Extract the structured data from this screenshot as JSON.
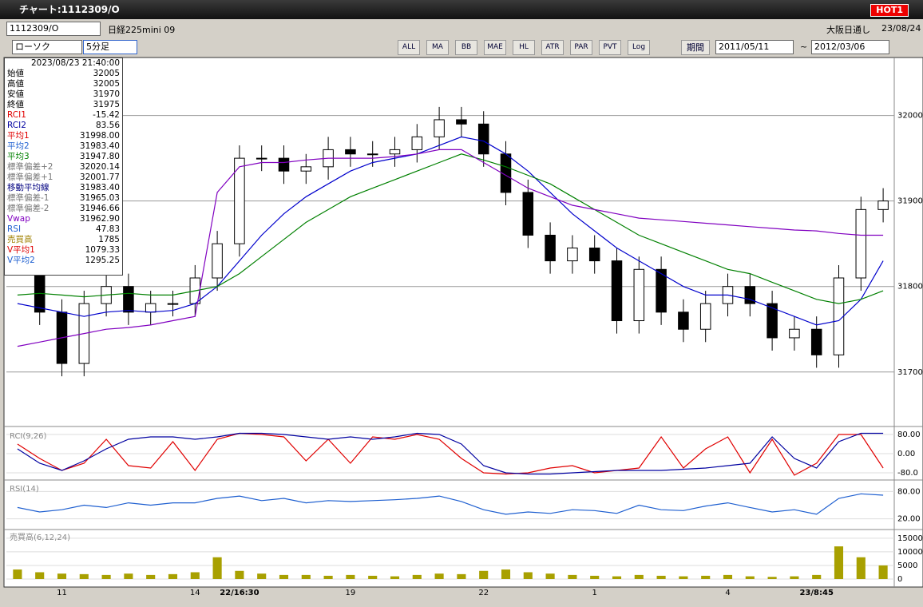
{
  "window": {
    "title": "チャート:1112309/O",
    "badge": "HOT1"
  },
  "toolbar": {
    "code": "1112309/O",
    "name": "日経225mini 09",
    "session": "大阪日通し",
    "date": "23/08/24",
    "chart_kind": "ローソク",
    "interval": "5分足",
    "buttons": [
      "ALL",
      "MA",
      "BB",
      "MAE",
      "HL",
      "ATR",
      "PAR",
      "PVT",
      "Log"
    ],
    "period_label": "期間",
    "from": "2011/05/11",
    "tilde": "~",
    "to": "2012/03/06"
  },
  "info_panel": {
    "datetime": "2023/08/23 21:40:00",
    "rows": [
      [
        "始値",
        "32005"
      ],
      [
        "高値",
        "32005"
      ],
      [
        "安値",
        "31970"
      ],
      [
        "終値",
        "31975"
      ],
      [
        "RCI1",
        "-15.42"
      ],
      [
        "RCI2",
        "83.56"
      ],
      [
        "平均1",
        "31998.00"
      ],
      [
        "平均2",
        "31983.40"
      ],
      [
        "平均3",
        "31947.80"
      ],
      [
        "標準偏差+2",
        "32020.14"
      ],
      [
        "標準偏差+1",
        "32001.77"
      ],
      [
        "移動平均線",
        "31983.40"
      ],
      [
        "標準偏差-1",
        "31965.03"
      ],
      [
        "標準偏差-2",
        "31946.66"
      ],
      [
        "Vwap",
        "31962.90"
      ],
      [
        "RSI",
        "47.83"
      ],
      [
        "売買高",
        "1785"
      ],
      [
        "V平均1",
        "1079.33"
      ],
      [
        "V平均2",
        "1295.25"
      ]
    ]
  },
  "chart_data": [
    {
      "type": "candlestick",
      "categories": [
        null,
        null,
        "11",
        null,
        null,
        null,
        null,
        null,
        "14",
        null,
        "22/16:30",
        null,
        null,
        null,
        null,
        "19",
        null,
        null,
        null,
        null,
        null,
        "22",
        null,
        null,
        null,
        null,
        "1",
        null,
        null,
        null,
        null,
        null,
        "4",
        null,
        null,
        null,
        "23/8:45",
        null,
        null,
        null
      ],
      "open": [
        31850,
        31830,
        31770,
        31710,
        31780,
        31800,
        31770,
        31780,
        31780,
        31810,
        31850,
        31950,
        31950,
        31935,
        31940,
        31960,
        31955,
        31955,
        31960,
        31975,
        31995,
        31990,
        31955,
        31910,
        31860,
        31830,
        31845,
        31830,
        31760,
        31820,
        31770,
        31750,
        31780,
        31800,
        31780,
        31740,
        31750,
        31720,
        31810,
        31890
      ],
      "high": [
        31865,
        31845,
        31785,
        31795,
        31815,
        31815,
        31795,
        31795,
        31825,
        31865,
        31965,
        31965,
        31965,
        31955,
        31975,
        31975,
        31970,
        31975,
        31990,
        32010,
        32010,
        32005,
        31970,
        31925,
        31875,
        31860,
        31860,
        31845,
        31835,
        31835,
        31785,
        31795,
        31815,
        31815,
        31795,
        31765,
        31765,
        31825,
        31905,
        31915
      ],
      "low": [
        31815,
        31755,
        31695,
        31695,
        31765,
        31755,
        31755,
        31765,
        31765,
        31795,
        31835,
        31935,
        31920,
        31920,
        31925,
        31940,
        31940,
        31940,
        31945,
        31960,
        31975,
        31940,
        31895,
        31845,
        31815,
        31815,
        31815,
        31745,
        31745,
        31755,
        31735,
        31735,
        31765,
        31765,
        31725,
        31725,
        31705,
        31705,
        31795,
        31875
      ],
      "close": [
        31830,
        31770,
        31710,
        31780,
        31800,
        31770,
        31780,
        31780,
        31810,
        31850,
        31950,
        31950,
        31935,
        31940,
        31960,
        31955,
        31955,
        31960,
        31975,
        31995,
        31990,
        31955,
        31910,
        31860,
        31830,
        31845,
        31830,
        31760,
        31820,
        31770,
        31750,
        31780,
        31800,
        31780,
        31740,
        31750,
        31720,
        31810,
        31890,
        31900
      ],
      "up_color": "#ffffff",
      "down_color": "#000000",
      "series": [
        {
          "color": "#0000cc",
          "values": [
            31780,
            31775,
            31770,
            31765,
            31770,
            31772,
            31770,
            31772,
            31780,
            31800,
            31830,
            31860,
            31885,
            31905,
            31920,
            31935,
            31945,
            31950,
            31955,
            31965,
            31975,
            31970,
            31955,
            31935,
            31910,
            31885,
            31865,
            31845,
            31830,
            31815,
            31800,
            31790,
            31790,
            31785,
            31775,
            31765,
            31755,
            31760,
            31785,
            31830
          ]
        },
        {
          "color": "#008000",
          "values": [
            31790,
            31792,
            31790,
            31788,
            31790,
            31792,
            31790,
            31790,
            31795,
            31800,
            31815,
            31835,
            31855,
            31875,
            31890,
            31905,
            31915,
            31925,
            31935,
            31945,
            31955,
            31948,
            31940,
            31930,
            31920,
            31905,
            31890,
            31875,
            31860,
            31850,
            31840,
            31830,
            31820,
            31815,
            31805,
            31795,
            31785,
            31780,
            31785,
            31795
          ]
        },
        {
          "color": "#8000c0",
          "values": [
            31730,
            31735,
            31740,
            31745,
            31750,
            31752,
            31755,
            31760,
            31765,
            31910,
            31940,
            31945,
            31945,
            31948,
            31950,
            31950,
            31950,
            31952,
            31955,
            31960,
            31960,
            31945,
            31930,
            31915,
            31905,
            31895,
            31890,
            31885,
            31880,
            31878,
            31876,
            31874,
            31872,
            31870,
            31868,
            31866,
            31865,
            31862,
            31860,
            31860
          ]
        }
      ],
      "ylim": [
        31640,
        32065
      ],
      "yticks": [
        31700,
        31800,
        31900,
        32000
      ],
      "grid": true
    },
    {
      "type": "line",
      "title": "RCI(9,26)",
      "ylim": [
        -100,
        100
      ],
      "yticks": [
        {
          "value": 80,
          "label": "80.00"
        },
        {
          "value": 0,
          "label": "0.00"
        },
        {
          "value": -80,
          "label": "-80.0"
        }
      ],
      "series": [
        {
          "color": "#e00000",
          "values": [
            40,
            -20,
            -70,
            -40,
            60,
            -50,
            -60,
            50,
            -70,
            60,
            85,
            80,
            70,
            -30,
            60,
            -40,
            70,
            60,
            80,
            60,
            -20,
            -80,
            -85,
            -80,
            -60,
            -50,
            -80,
            -70,
            -60,
            70,
            -60,
            20,
            70,
            -80,
            60,
            -90,
            -40,
            80,
            80,
            -60
          ]
        },
        {
          "color": "#0000a0",
          "values": [
            20,
            -40,
            -70,
            -30,
            20,
            60,
            70,
            70,
            60,
            70,
            85,
            85,
            80,
            70,
            60,
            70,
            60,
            70,
            85,
            80,
            40,
            -50,
            -80,
            -85,
            -85,
            -80,
            -75,
            -70,
            -70,
            -70,
            -65,
            -60,
            -50,
            -40,
            70,
            -20,
            -60,
            50,
            85,
            85
          ]
        }
      ]
    },
    {
      "type": "line",
      "title": "RSI(14)",
      "ylim": [
        0,
        100
      ],
      "yticks": [
        {
          "value": 80,
          "label": "80.00"
        },
        {
          "value": 20,
          "label": "20.00"
        }
      ],
      "series": [
        {
          "color": "#1e5fd0",
          "values": [
            45,
            35,
            40,
            50,
            45,
            55,
            50,
            55,
            55,
            65,
            70,
            60,
            65,
            55,
            60,
            58,
            60,
            62,
            65,
            70,
            58,
            40,
            30,
            35,
            32,
            40,
            38,
            32,
            50,
            40,
            38,
            48,
            55,
            45,
            35,
            40,
            30,
            65,
            75,
            72
          ]
        }
      ]
    },
    {
      "type": "bar",
      "title": "売買高(6,12,24)",
      "color": "#a8a000",
      "ylim": [
        0,
        17600
      ],
      "yticks": [
        0,
        5000,
        10000,
        15000
      ],
      "values": [
        3500,
        2500,
        2000,
        1800,
        1500,
        2000,
        1500,
        1800,
        2500,
        8000,
        3000,
        2000,
        1500,
        1500,
        1200,
        1500,
        1200,
        1000,
        1500,
        2000,
        1800,
        3000,
        3500,
        2500,
        2000,
        1500,
        1200,
        1000,
        1500,
        1200,
        1000,
        1200,
        1500,
        1000,
        800,
        1000,
        1500,
        12000,
        8000,
        5000
      ]
    }
  ]
}
